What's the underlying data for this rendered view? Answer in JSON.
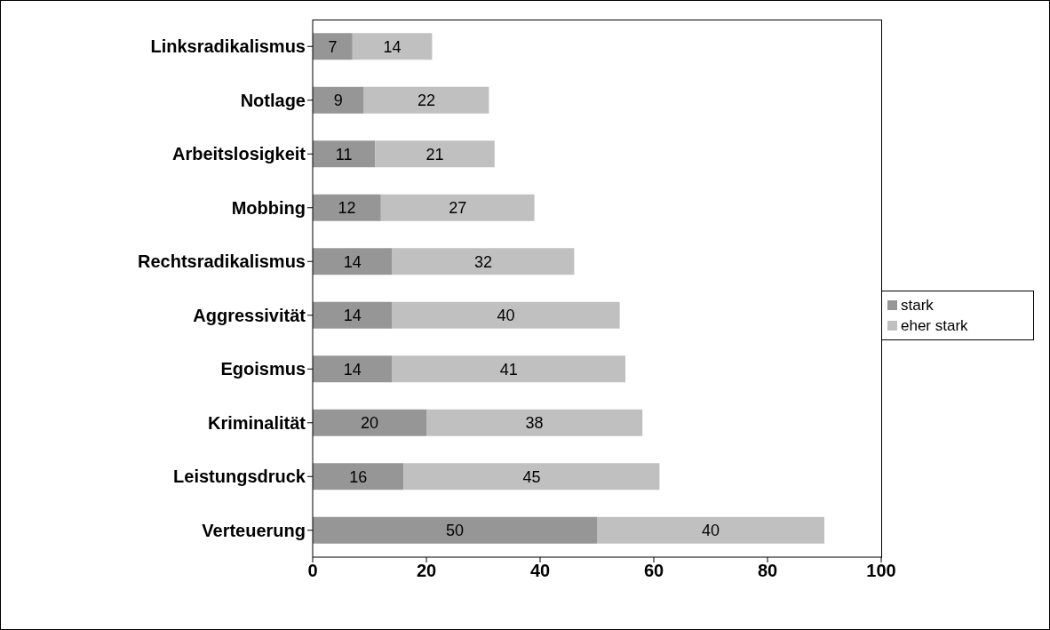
{
  "chart_data": {
    "type": "bar",
    "orientation": "horizontal",
    "stacked": true,
    "categories": [
      "Linksradikalismus",
      "Notlage",
      "Arbeitslosigkeit",
      "Mobbing",
      "Rechtsradikalismus",
      "Aggressivität",
      "Egoismus",
      "Kriminalität",
      "Leistungsdruck",
      "Verteuerung"
    ],
    "series": [
      {
        "name": "stark",
        "color": "#969696",
        "values": [
          7,
          9,
          11,
          12,
          14,
          14,
          14,
          20,
          16,
          50
        ]
      },
      {
        "name": "eher stark",
        "color": "#c0c0c0",
        "values": [
          14,
          22,
          21,
          27,
          32,
          40,
          41,
          38,
          45,
          40
        ]
      }
    ],
    "xlim": [
      0,
      100
    ],
    "xticks": [
      0,
      20,
      40,
      60,
      80,
      100
    ],
    "grid": false,
    "legend": "right",
    "data_labels": true
  }
}
